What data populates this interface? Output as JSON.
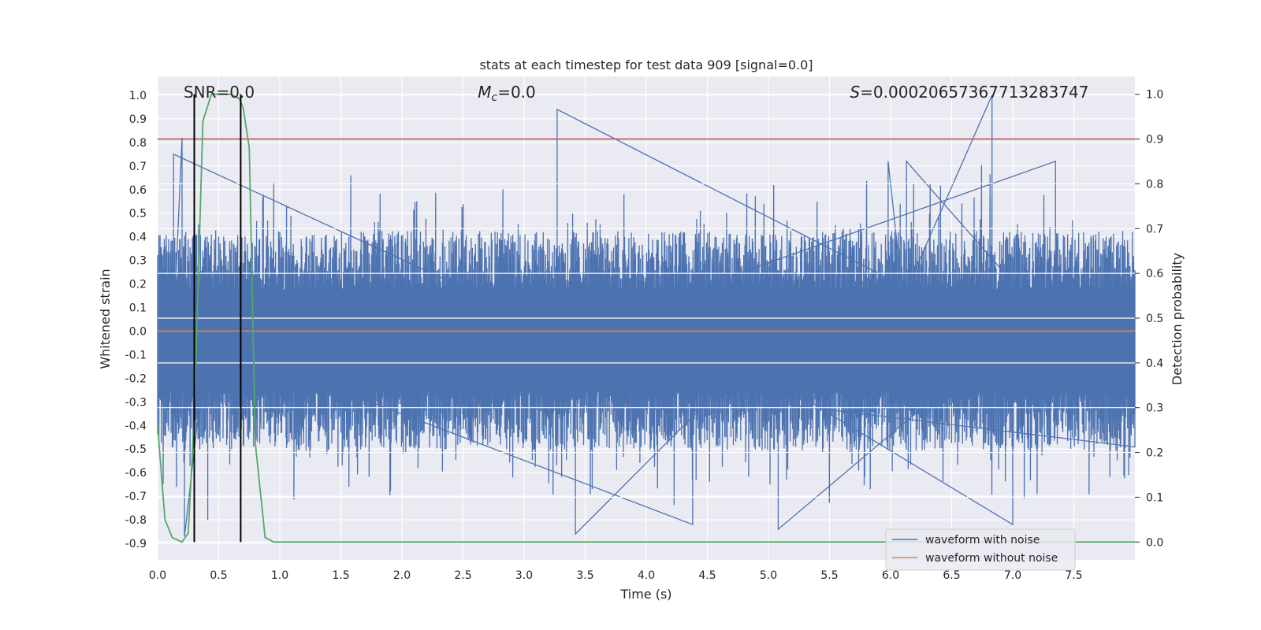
{
  "chart_data": {
    "type": "line",
    "title": "stats at each timestep for test data 909 [signal=0.0]",
    "xlabel": "Time (s)",
    "ylabel": "Whitened strain",
    "y2label": "Detection probability",
    "xlim": [
      0.0,
      8.0
    ],
    "ylim": [
      -0.97,
      1.08
    ],
    "y2lim": [
      -0.04,
      1.04
    ],
    "x_ticks": [
      0.0,
      0.5,
      1.0,
      1.5,
      2.0,
      2.5,
      3.0,
      3.5,
      4.0,
      4.5,
      5.0,
      5.5,
      6.0,
      6.5,
      7.0,
      7.5
    ],
    "x_tick_labels": [
      "0.0",
      "0.5",
      "1.0",
      "1.5",
      "2.0",
      "2.5",
      "3.0",
      "3.5",
      "4.0",
      "4.5",
      "5.0",
      "5.5",
      "6.0",
      "6.5",
      "7.0",
      "7.5"
    ],
    "y_ticks": [
      1.0,
      0.9,
      0.8,
      0.7,
      0.6,
      0.5,
      0.4,
      0.3,
      0.2,
      0.1,
      0.0,
      -0.1,
      -0.2,
      -0.3,
      -0.4,
      -0.5,
      -0.6,
      -0.7,
      -0.8,
      -0.9
    ],
    "y_tick_labels": [
      "1.0",
      "0.9",
      "0.8",
      "0.7",
      "0.6",
      "0.5",
      "0.4",
      "0.3",
      "0.2",
      "0.1",
      "0.0",
      "-0.1",
      "-0.2",
      "-0.3",
      "-0.4",
      "-0.5",
      "-0.6",
      "-0.7",
      "-0.8",
      "-0.9"
    ],
    "y2_ticks": [
      1.0,
      0.9,
      0.8,
      0.7,
      0.6,
      0.5,
      0.4,
      0.3,
      0.2,
      0.1,
      0.0
    ],
    "y2_tick_labels": [
      "1.0",
      "0.9",
      "0.8",
      "0.7",
      "0.6",
      "0.5",
      "0.4",
      "0.3",
      "0.2",
      "0.1",
      "0.0"
    ],
    "annotations": [
      {
        "text": "SNR=0.0",
        "x": 0.5
      },
      {
        "prefix": "M",
        "sub": "c",
        "suffix": "=0.0",
        "x": 2.85
      },
      {
        "prefix": "S",
        "suffix": "=0.00020657367713283747",
        "x": 6.4
      }
    ],
    "series": [
      {
        "name": "waveform with noise",
        "color": "#4c72b0",
        "axis": "left",
        "kind": "noise",
        "samples": 1600,
        "envelope_upper_typical": 0.25,
        "envelope_lower_typical": -0.33,
        "notable_peaks": [
          {
            "x": 0.2,
            "y": 0.82
          },
          {
            "x": 0.13,
            "y": 0.75
          },
          {
            "x": 3.27,
            "y": 0.94
          },
          {
            "x": 6.83,
            "y": 1.0
          },
          {
            "x": 5.98,
            "y": 0.72
          },
          {
            "x": 6.13,
            "y": 0.72
          },
          {
            "x": 7.35,
            "y": 0.72
          },
          {
            "x": 3.42,
            "y": -0.86
          },
          {
            "x": 5.08,
            "y": -0.84
          },
          {
            "x": 7.0,
            "y": -0.82
          },
          {
            "x": 4.38,
            "y": -0.82
          },
          {
            "x": 0.22,
            "y": -0.87
          },
          {
            "x": 0.41,
            "y": -0.8
          }
        ]
      },
      {
        "name": "waveform without noise",
        "color": "#dd8452",
        "axis": "left",
        "x": [
          0.0,
          8.0
        ],
        "y": [
          0.0,
          0.0
        ]
      },
      {
        "name": "detection probability",
        "color": "#55a868",
        "axis": "right",
        "x": [
          0.0,
          0.06,
          0.12,
          0.2,
          0.25,
          0.3,
          0.37,
          0.44,
          0.5,
          0.6,
          0.67,
          0.7,
          0.75,
          0.8,
          0.88,
          0.95,
          8.0
        ],
        "y": [
          0.26,
          0.05,
          0.01,
          0.0,
          0.02,
          0.28,
          0.94,
          1.0,
          1.0,
          1.0,
          0.99,
          0.97,
          0.88,
          0.22,
          0.01,
          0.0,
          0.0
        ]
      }
    ],
    "hlines": [
      {
        "name": "threshold",
        "axis": "right",
        "y": 0.9,
        "color": "#c44e52"
      }
    ],
    "vlines": [
      {
        "x": 0.3,
        "color": "#000000"
      },
      {
        "x": 0.68,
        "color": "#000000"
      }
    ],
    "legend": {
      "location": "lower-right",
      "entries": [
        {
          "label": "waveform with noise",
          "color": "#4c72b0"
        },
        {
          "label": "waveform without noise",
          "color": "#dd8452"
        }
      ]
    },
    "grid": true
  }
}
